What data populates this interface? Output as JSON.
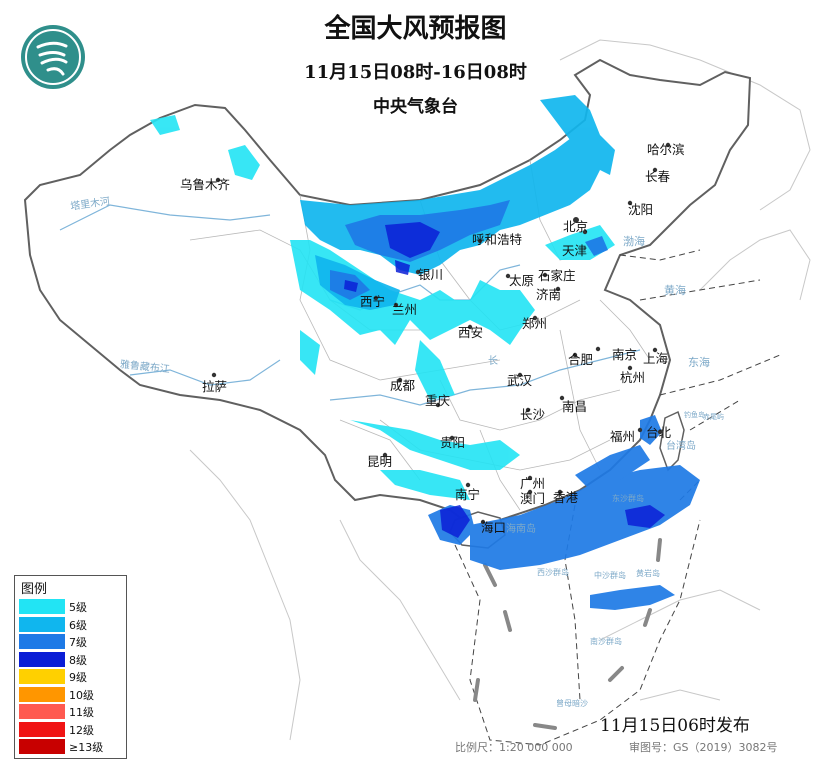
{
  "header": {
    "title": "全国大风预报图",
    "period": "11月15日08时-16日08时",
    "agency": "中央气象台"
  },
  "legend": {
    "title": "图例",
    "items": [
      {
        "label": "5级",
        "color": "#22e4f4"
      },
      {
        "label": "6级",
        "color": "#10b6ee"
      },
      {
        "label": "7级",
        "color": "#1e7ae6"
      },
      {
        "label": "8级",
        "color": "#0a1ed6"
      },
      {
        "label": "9级",
        "color": "#ffd000"
      },
      {
        "label": "10级",
        "color": "#ff9600"
      },
      {
        "label": "11级",
        "color": "#ff5a50"
      },
      {
        "label": "12级",
        "color": "#f01414"
      },
      {
        "label": "≥13级",
        "color": "#c80000"
      }
    ]
  },
  "cities": {
    "harbin": "哈尔滨",
    "changchun": "长春",
    "urumqi": "乌鲁木齐",
    "shenyang": "沈阳",
    "beijing": "北京",
    "tianjin": "天津",
    "hohhot": "呼和浩特",
    "yinchuan": "银川",
    "taiyuan": "太原",
    "shijiazhuang": "石家庄",
    "jinan": "济南",
    "xining": "西宁",
    "lanzhou": "兰州",
    "zhengzhou": "郑州",
    "xian": "西安",
    "nanjing": "南京",
    "hefei": "合肥",
    "shanghai": "上海",
    "lhasa": "拉萨",
    "wuhan": "武汉",
    "hangzhou": "杭州",
    "chengdu": "成都",
    "chongqing": "重庆",
    "nanchang": "南昌",
    "changsha": "长沙",
    "fuzhou": "福州",
    "taibei": "台北",
    "guiyang": "贵阳",
    "kunming": "昆明",
    "guangzhou": "广州",
    "nanning": "南宁",
    "hongkong": "香港",
    "macao": "澳门",
    "haikou": "海口"
  },
  "geo_labels": {
    "bohai": "渤海",
    "huanghai": "黄海",
    "donghai": "东海",
    "taiwan": "台湾岛",
    "hainan": "海南岛",
    "dongsha": "东沙群岛",
    "xisha": "西沙群岛",
    "zhongsha": "中沙群岛",
    "huangyan": "黄岩岛",
    "nansha": "南沙群岛",
    "zengmu": "曾母暗沙",
    "chiwei": "赤尾屿",
    "diaoyu": "钓鱼岛",
    "tarim": "塔里木河",
    "changjiang": "长",
    "yalu": "雅鲁藏布江"
  },
  "footer": {
    "issued": "11月15日06时发布",
    "scale": "比例尺：1:20 000 000",
    "approval": "审图号：GS（2019）3082号"
  }
}
